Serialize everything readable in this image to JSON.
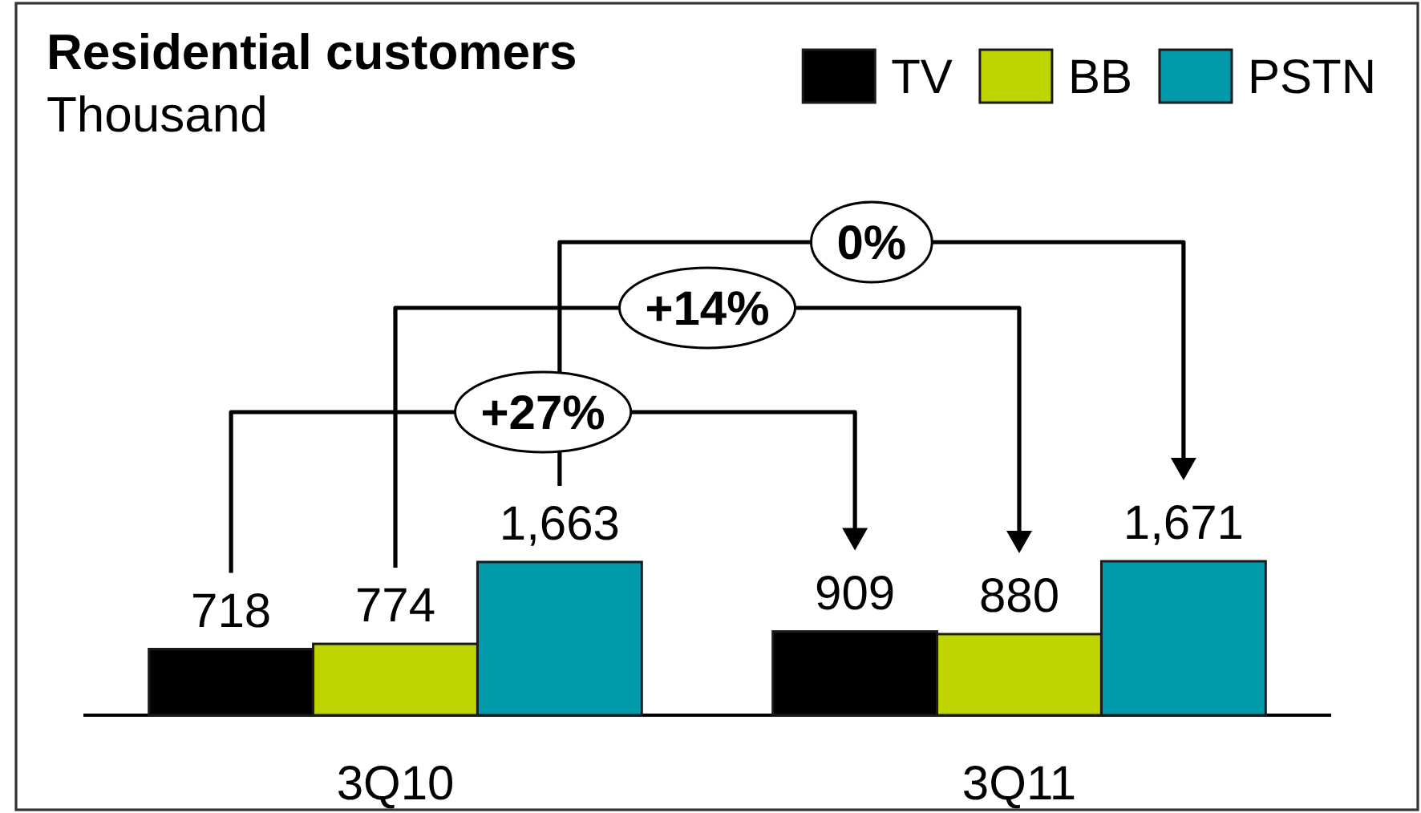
{
  "chart_data": {
    "type": "bar",
    "title": "Residential customers",
    "subtitle": "Thousand",
    "categories": [
      "3Q10",
      "3Q11"
    ],
    "series": [
      {
        "name": "TV",
        "color": "#000000",
        "values": [
          718,
          909
        ],
        "value_labels": [
          "718",
          "909"
        ]
      },
      {
        "name": "BB",
        "color": "#c0d400",
        "values": [
          774,
          880
        ],
        "value_labels": [
          "774",
          "880"
        ]
      },
      {
        "name": "PSTN",
        "color": "#009aaa",
        "values": [
          1663,
          1671
        ],
        "value_labels": [
          "1,663",
          "1,671"
        ]
      }
    ],
    "legend": "top right",
    "annotations": [
      "+27%",
      "+14%",
      "0%"
    ]
  }
}
